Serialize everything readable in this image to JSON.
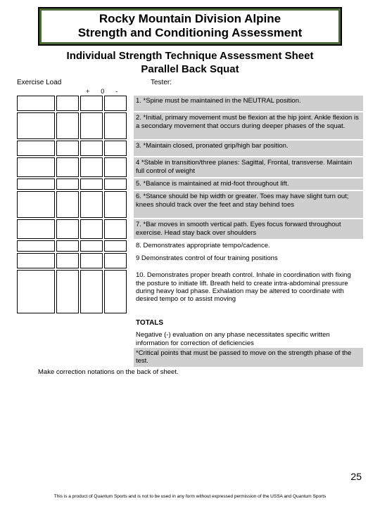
{
  "banner": {
    "line1": "Rocky Mountain Division Alpine",
    "line2": "Strength and Conditioning Assessment"
  },
  "subtitle": {
    "line1": "Individual Strength Technique Assessment Sheet",
    "line2": "Parallel Back Squat"
  },
  "meta": {
    "exercise_load": "Exercise Load",
    "tester": "Tester:"
  },
  "pm": {
    "plus": "+",
    "zero": "0",
    "minus": "-"
  },
  "criteria": [
    {
      "n": "1.",
      "t": "*Spine must be maintained in the NEUTRAL position.",
      "h": 22,
      "shade": true
    },
    {
      "n": "2.",
      "t": "*Initial, primary movement must be flexion at the hip joint. Ankle flexion is a secondary movement that occurs during deeper phases of the squat.",
      "h": 38,
      "shade": true
    },
    {
      "n": "3.",
      "t": "*Maintain closed, pronated grip/high bar position.",
      "h": 22,
      "shade": true
    },
    {
      "n": "4",
      "t": "*Stable in transition/three planes:  Sagittal, Frontal, transverse.  Maintain full control of weight",
      "h": 28,
      "shade": true
    },
    {
      "n": "5.",
      "t": "*Balance is maintained at mid-foot throughout lift.",
      "h": 16,
      "shade": true
    },
    {
      "n": "6.",
      "t": "*Stance should be hip width or greater.  Toes may have slight turn out; knees should track over the feet and stay behind toes",
      "h": 38,
      "shade": true
    },
    {
      "n": "7.",
      "t": "*Bar moves in smooth vertical path.  Eyes focus forward throughout exercise. Head stay back over shoulders",
      "h": 28,
      "shade": true
    },
    {
      "n": "8.",
      "t": "Demonstrates appropriate tempo/cadence.",
      "h": 16,
      "shade": false
    },
    {
      "n": "9",
      "t": "Demonstrates control of four training positions",
      "h": 22,
      "shade": false
    },
    {
      "n": "10.",
      "t": "Demonstrates proper breath control.  Inhale in coordination with fixing the posture to initiate lift.  Breath held to create intra-abdominal pressure during heavy load phase.  Exhalation may be altered to coordinate with desired tempo or to assist moving",
      "h": 62,
      "shade": false
    }
  ],
  "totals_label": "TOTALS",
  "note_negative": "Negative (-) evaluation on any phase necessitates specific written information for correction of deficiencies",
  "note_critical": "*Critical points that must be passed to move on the strength phase of the test.",
  "back_note": "Make correction notations on the back of sheet.",
  "page_number": "25",
  "footer": "This is a product of Quantum Sports and is not to be used in any form without expressed permission of the USSA and Quantum Sports",
  "colors": {
    "banner_bg": "#4a6834",
    "shade": "#cfcfcf"
  }
}
